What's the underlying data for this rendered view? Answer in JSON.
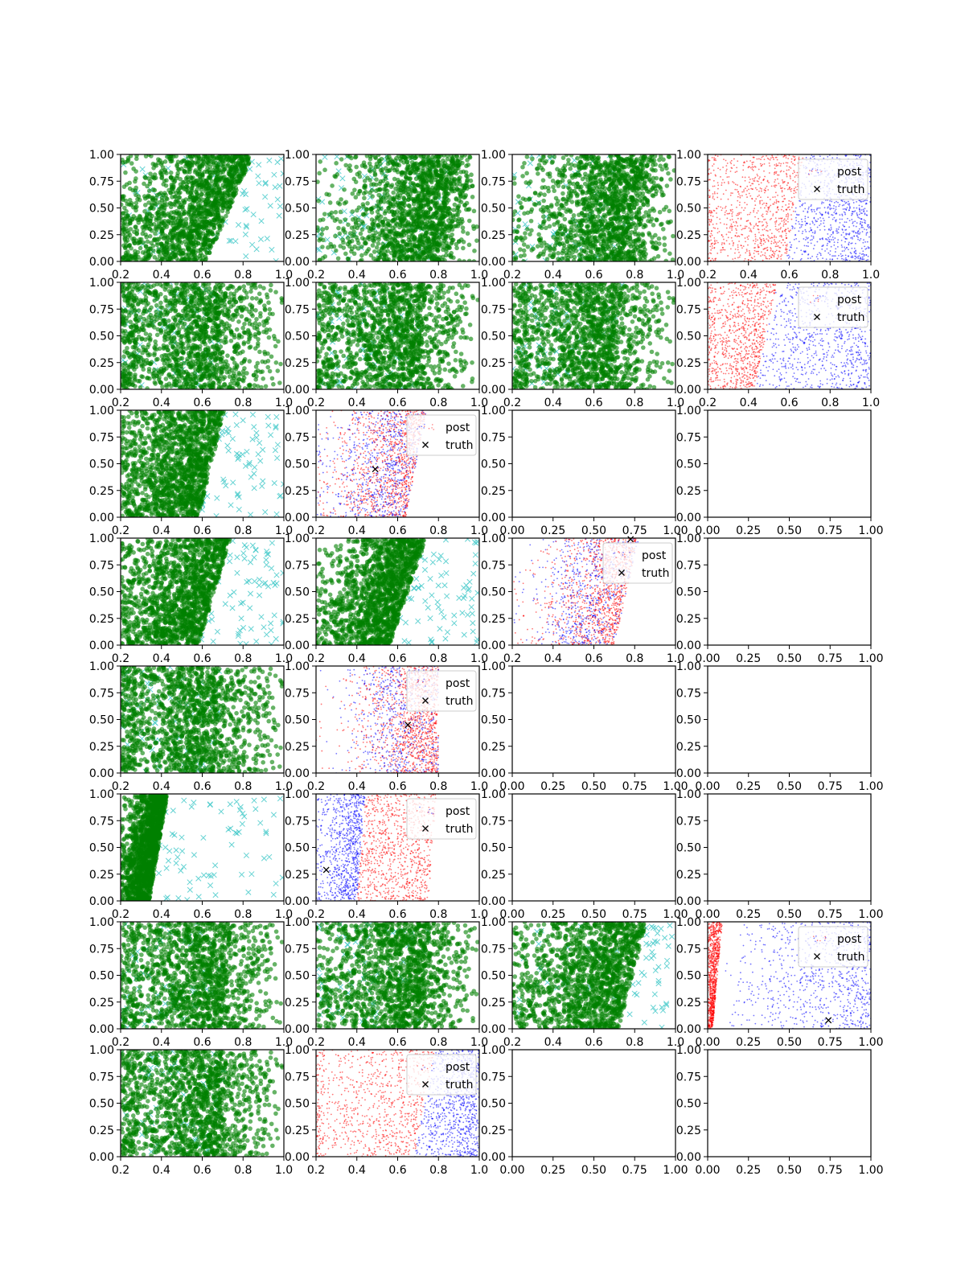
{
  "figure": {
    "rows": 8,
    "cols": 4,
    "colors": {
      "samples": "#008000",
      "reference": "#40c8c8",
      "post_a": "#ff0000",
      "post_b": "#0000ff",
      "truth": "#000000"
    }
  },
  "chart_data": {
    "type": "scatter",
    "legend": {
      "entries": [
        "post",
        "truth"
      ],
      "placement": "upper-right"
    },
    "x_ticks_scatter": [
      "0.2",
      "0.4",
      "0.6",
      "0.8",
      "1.0"
    ],
    "x_ticks_empty": [
      "0.00",
      "0.25",
      "0.50",
      "0.75",
      "1.00"
    ],
    "y_ticks": [
      "0.00",
      "0.25",
      "0.50",
      "0.75",
      "1.00"
    ],
    "xlim_scatter": [
      0.2,
      1.0
    ],
    "xlim_empty": [
      0.0,
      1.0
    ],
    "ylim": [
      0.0,
      1.0
    ],
    "panels": [
      [
        {
          "kind": "samples",
          "lo": 0.62,
          "hi": 0.85,
          "spread": 0.16,
          "ref_left": true,
          "ref_right": true
        },
        {
          "kind": "samples",
          "lo": 0.78,
          "hi": 0.9,
          "spread": 0.18,
          "ref_left": true,
          "ref_right": false
        },
        {
          "kind": "samples",
          "lo": 0.74,
          "hi": 0.86,
          "spread": 0.18,
          "ref_left": true,
          "ref_right": false
        },
        {
          "kind": "post",
          "xlim": [
            0.2,
            1.0
          ],
          "split_lo": 0.58,
          "split_hi": 0.67,
          "ord": "ab",
          "legend": true
        }
      ],
      [
        {
          "kind": "samples",
          "lo": 0.66,
          "hi": 0.72,
          "spread": 0.22,
          "ref_left": true,
          "ref_right": false
        },
        {
          "kind": "samples",
          "lo": 0.7,
          "hi": 0.74,
          "spread": 0.22,
          "ref_left": true,
          "ref_right": false
        },
        {
          "kind": "samples",
          "lo": 0.68,
          "hi": 0.74,
          "spread": 0.22,
          "ref_left": true,
          "ref_right": false
        },
        {
          "kind": "post",
          "xlim": [
            0.2,
            1.0
          ],
          "split_lo": 0.43,
          "split_hi": 0.54,
          "ord": "ab",
          "legend": true
        }
      ],
      [
        {
          "kind": "samples",
          "lo": 0.58,
          "hi": 0.71,
          "spread": 0.14,
          "ref_left": false,
          "ref_right": true
        },
        {
          "kind": "post",
          "xlim": [
            0.2,
            1.0
          ],
          "split_lo": 0.64,
          "split_hi": 0.74,
          "ord": "mix",
          "legend": true,
          "truth": [
            0.49,
            0.45
          ]
        },
        {
          "kind": "empty"
        },
        {
          "kind": "empty"
        }
      ],
      [
        {
          "kind": "samples",
          "lo": 0.58,
          "hi": 0.74,
          "spread": 0.14,
          "ref_left": false,
          "ref_right": true
        },
        {
          "kind": "samples",
          "lo": 0.56,
          "hi": 0.74,
          "spread": 0.12,
          "ref_left": false,
          "ref_right": true
        },
        {
          "kind": "post",
          "xlim": [
            0.2,
            1.0
          ],
          "split_lo": 0.7,
          "split_hi": 0.82,
          "ord": "mix",
          "legend": true,
          "truth": [
            0.78,
            0.99
          ]
        },
        {
          "kind": "empty"
        }
      ],
      [
        {
          "kind": "samples",
          "lo": 0.66,
          "hi": 0.7,
          "spread": 0.22,
          "ref_left": true,
          "ref_right": false
        },
        {
          "kind": "post",
          "xlim": [
            0.2,
            1.0
          ],
          "split_lo": 0.8,
          "split_hi": 0.8,
          "ord": "mix",
          "legend": true,
          "truth": [
            0.65,
            0.45
          ]
        },
        {
          "kind": "empty"
        },
        {
          "kind": "empty"
        }
      ],
      [
        {
          "kind": "samples",
          "lo": 0.34,
          "hi": 0.43,
          "spread": 0.05,
          "ref_left": false,
          "ref_right": true
        },
        {
          "kind": "post",
          "xlim": [
            0.2,
            1.0
          ],
          "split_lo": 0.4,
          "split_hi": 0.44,
          "ord": "ba",
          "legend": true,
          "truth": [
            0.25,
            0.29
          ]
        },
        {
          "kind": "empty"
        },
        {
          "kind": "empty"
        }
      ],
      [
        {
          "kind": "samples",
          "lo": 0.7,
          "hi": 0.74,
          "spread": 0.22,
          "ref_left": true,
          "ref_right": false
        },
        {
          "kind": "samples",
          "lo": 0.72,
          "hi": 0.76,
          "spread": 0.2,
          "ref_left": true,
          "ref_right": false
        },
        {
          "kind": "samples",
          "lo": 0.72,
          "hi": 0.86,
          "spread": 0.18,
          "ref_left": true,
          "ref_right": true
        },
        {
          "kind": "post",
          "xlim": [
            0.0,
            1.0
          ],
          "split_lo": 0.03,
          "split_hi": 0.09,
          "ord": "ab",
          "legend": true,
          "truth": [
            0.74,
            0.08
          ],
          "blue_sparse": true
        }
      ],
      [
        {
          "kind": "samples",
          "lo": 0.68,
          "hi": 0.72,
          "spread": 0.22,
          "ref_left": true,
          "ref_right": false
        },
        {
          "kind": "post",
          "xlim": [
            0.2,
            1.0
          ],
          "split_lo": 0.68,
          "split_hi": 0.78,
          "ord": "ab",
          "legend": true
        },
        {
          "kind": "empty"
        },
        {
          "kind": "empty"
        }
      ]
    ]
  }
}
